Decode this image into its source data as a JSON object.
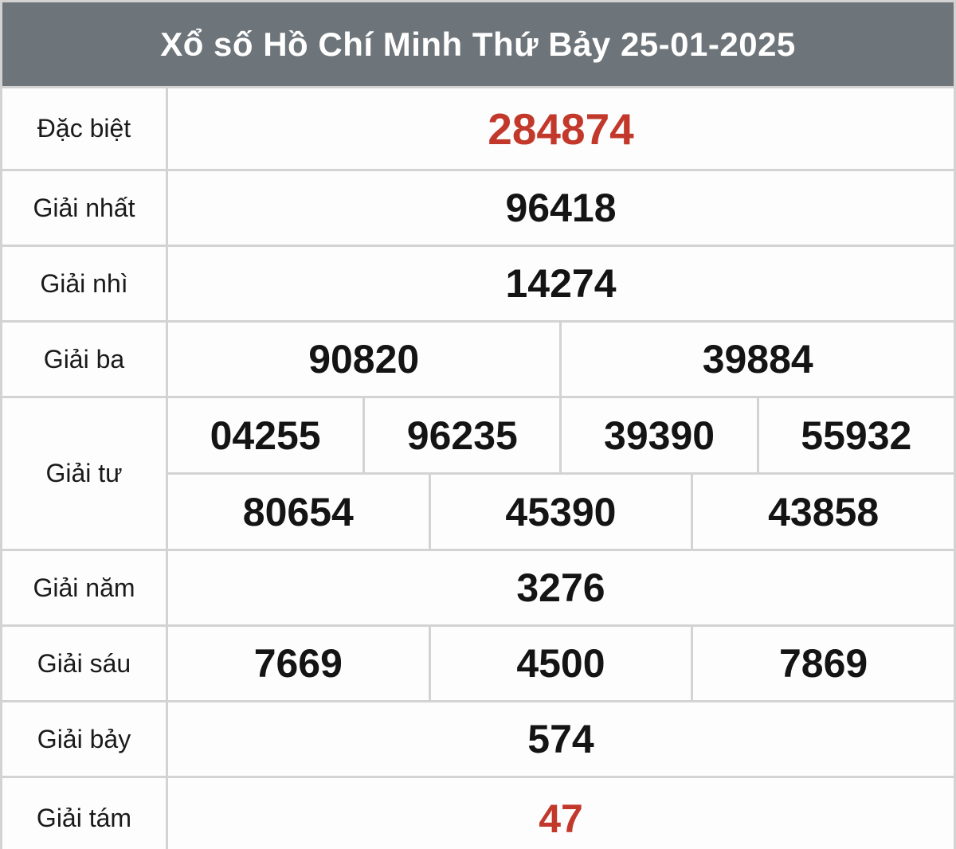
{
  "title": "Xổ số Hồ Chí Minh Thứ Bảy 25-01-2025",
  "colors": {
    "header_bg": "#6e757a",
    "header_text": "#ffffff",
    "grid": "#d3d3d3",
    "cell_bg": "#fdfdfd",
    "number": "#141414",
    "highlight_number": "#c2392c"
  },
  "rows": [
    {
      "label": "Đặc biệt",
      "values": [
        "284874"
      ],
      "highlight": true
    },
    {
      "label": "Giải nhất",
      "values": [
        "96418"
      ]
    },
    {
      "label": "Giải nhì",
      "values": [
        "14274"
      ]
    },
    {
      "label": "Giải ba",
      "values": [
        "90820",
        "39884"
      ]
    },
    {
      "label": "Giải tư",
      "sub": [
        [
          "04255",
          "96235",
          "39390",
          "55932"
        ],
        [
          "80654",
          "45390",
          "43858"
        ]
      ]
    },
    {
      "label": "Giải năm",
      "values": [
        "3276"
      ]
    },
    {
      "label": "Giải sáu",
      "values": [
        "7669",
        "4500",
        "7869"
      ]
    },
    {
      "label": "Giải bảy",
      "values": [
        "574"
      ]
    },
    {
      "label": "Giải tám",
      "values": [
        "47"
      ],
      "highlight": true
    }
  ]
}
